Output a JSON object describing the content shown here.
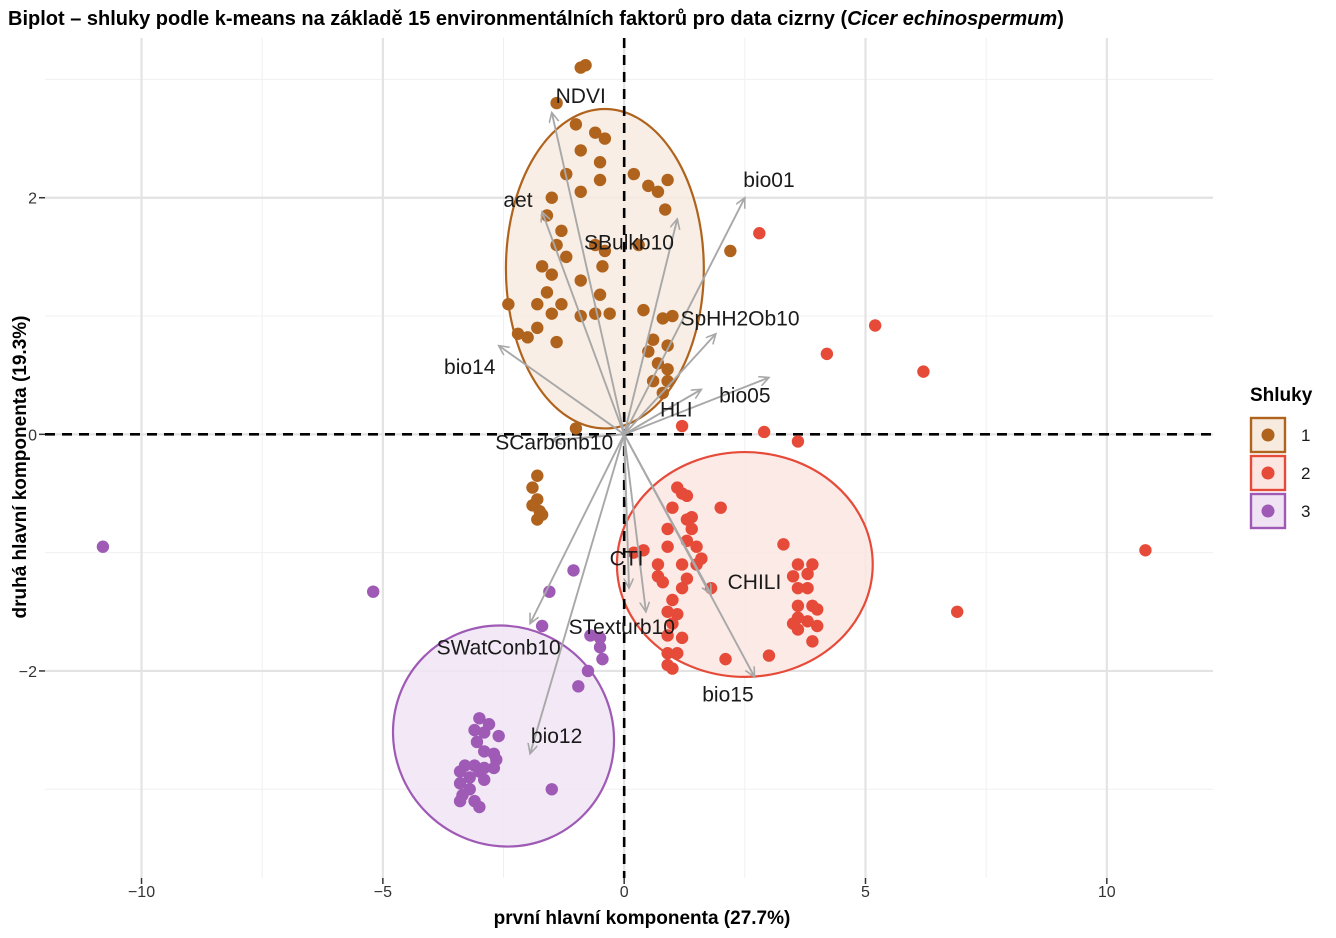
{
  "chart_data": {
    "type": "scatter",
    "subtype": "pca-biplot",
    "title_main": "Biplot – shluky podle k-means na základě 15 environmentálních faktorů pro data cizrny (",
    "title_italic": "Cicer echinospermum",
    "title_end": ")",
    "xlabel": "první hlavní komponenta (27.7%)",
    "ylabel": "druhá hlavní komponenta (19.3%)",
    "xlim": [
      -12.0,
      12.2
    ],
    "ylim": [
      -3.75,
      3.35
    ],
    "xticks": [
      -10,
      -5,
      0,
      5,
      10
    ],
    "xtick_labels": [
      "−10",
      "−5",
      "0",
      "5",
      "10"
    ],
    "yticks": [
      -2,
      0,
      2
    ],
    "ytick_labels": [
      "−2",
      "0",
      "2"
    ],
    "x_minor": [
      -7.5,
      -2.5,
      2.5,
      7.5
    ],
    "y_minor": [
      -3,
      -1,
      1,
      3
    ],
    "grid": true,
    "legend": {
      "title": "Shluky",
      "position": "right",
      "items": [
        {
          "label": "1",
          "color": "#b0631d"
        },
        {
          "label": "2",
          "color": "#e64b3a"
        },
        {
          "label": "3",
          "color": "#9e5ab5"
        }
      ]
    },
    "arrow_color": "#a8a8a8",
    "loadings": [
      {
        "name": "NDVI",
        "x": -1.5,
        "y": 2.72,
        "lx": -0.9,
        "ly": 2.86
      },
      {
        "name": "aet",
        "x": -1.7,
        "y": 1.88,
        "lx": -2.2,
        "ly": 1.98
      },
      {
        "name": "SBulkb10",
        "x": 1.1,
        "y": 1.82,
        "lx": 0.1,
        "ly": 1.62
      },
      {
        "name": "bio01",
        "x": 2.5,
        "y": 2.0,
        "lx": 3.0,
        "ly": 2.15
      },
      {
        "name": "SpHH2Ob10",
        "x": 1.9,
        "y": 0.85,
        "lx": 2.4,
        "ly": 0.98
      },
      {
        "name": "bio14",
        "x": -2.6,
        "y": 0.75,
        "lx": -3.2,
        "ly": 0.57
      },
      {
        "name": "bio05",
        "x": 3.0,
        "y": 0.48,
        "lx": 2.5,
        "ly": 0.33
      },
      {
        "name": "HLI",
        "x": 1.6,
        "y": 0.38,
        "lx": 1.08,
        "ly": 0.21
      },
      {
        "name": "SCarbonb10",
        "x": -1.5,
        "y": -0.05,
        "lx": -1.45,
        "ly": -0.07
      },
      {
        "name": "CTI",
        "x": 0.45,
        "y": -1.5,
        "lx": 0.05,
        "ly": -1.05
      },
      {
        "name": "CHILI",
        "x": 1.8,
        "y": -1.35,
        "lx": 2.7,
        "ly": -1.25
      },
      {
        "name": "STexturb10",
        "x": 0.1,
        "y": -1.3,
        "lx": -0.05,
        "ly": -1.63
      },
      {
        "name": "SWatConb10",
        "x": -1.95,
        "y": -1.6,
        "lx": -2.6,
        "ly": -1.8
      },
      {
        "name": "bio15",
        "x": 2.7,
        "y": -2.05,
        "lx": 2.15,
        "ly": -2.2
      },
      {
        "name": "bio12",
        "x": -1.95,
        "y": -2.7,
        "lx": -1.4,
        "ly": -2.55
      }
    ],
    "clusters": [
      {
        "name": "1",
        "color": "#b0631d",
        "fill": "#f7ebe0",
        "ellipse": {
          "cx": -0.4,
          "cy": 1.4,
          "rx": 2.05,
          "ry": 1.35
        },
        "points": [
          [
            -0.9,
            3.1
          ],
          [
            -0.8,
            3.12
          ],
          [
            -1.4,
            2.8
          ],
          [
            -1.0,
            2.62
          ],
          [
            -0.6,
            2.55
          ],
          [
            -0.4,
            2.5
          ],
          [
            -0.9,
            2.4
          ],
          [
            -0.5,
            2.3
          ],
          [
            -1.2,
            2.2
          ],
          [
            -0.5,
            2.15
          ],
          [
            0.2,
            2.2
          ],
          [
            0.5,
            2.1
          ],
          [
            0.9,
            2.15
          ],
          [
            -1.5,
            2.0
          ],
          [
            -0.9,
            2.05
          ],
          [
            0.7,
            2.05
          ],
          [
            0.85,
            1.9
          ],
          [
            -1.6,
            1.85
          ],
          [
            -1.3,
            1.72
          ],
          [
            -1.4,
            1.6
          ],
          [
            -0.6,
            1.6
          ],
          [
            -0.4,
            1.55
          ],
          [
            0.3,
            1.6
          ],
          [
            -1.2,
            1.5
          ],
          [
            -1.7,
            1.42
          ],
          [
            -0.45,
            1.42
          ],
          [
            -1.5,
            1.35
          ],
          [
            -0.9,
            1.3
          ],
          [
            -1.6,
            1.2
          ],
          [
            -0.5,
            1.18
          ],
          [
            -1.3,
            1.1
          ],
          [
            -1.8,
            1.1
          ],
          [
            -2.4,
            1.1
          ],
          [
            -1.5,
            1.02
          ],
          [
            -0.9,
            1.0
          ],
          [
            -0.6,
            1.02
          ],
          [
            -0.3,
            1.02
          ],
          [
            0.4,
            1.05
          ],
          [
            1.0,
            1.0
          ],
          [
            0.8,
            0.98
          ],
          [
            -1.8,
            0.9
          ],
          [
            -2.2,
            0.85
          ],
          [
            -2.0,
            0.82
          ],
          [
            0.6,
            0.8
          ],
          [
            0.9,
            0.75
          ],
          [
            -1.4,
            0.78
          ],
          [
            0.5,
            0.7
          ],
          [
            0.7,
            0.6
          ],
          [
            0.9,
            0.55
          ],
          [
            0.6,
            0.45
          ],
          [
            0.9,
            0.45
          ],
          [
            0.8,
            0.35
          ],
          [
            2.2,
            1.55
          ],
          [
            -1.0,
            0.05
          ],
          [
            -1.8,
            -0.35
          ],
          [
            -1.9,
            -0.45
          ],
          [
            -1.8,
            -0.55
          ],
          [
            -1.9,
            -0.6
          ],
          [
            -1.75,
            -0.65
          ],
          [
            -1.8,
            -0.72
          ],
          [
            -1.7,
            -0.68
          ]
        ]
      },
      {
        "name": "2",
        "color": "#e64b3a",
        "fill": "#fce6e2",
        "ellipse": {
          "cx": 2.5,
          "cy": -1.1,
          "rx": 2.65,
          "ry": 0.95
        },
        "points": [
          [
            2.8,
            1.7
          ],
          [
            5.2,
            0.92
          ],
          [
            4.2,
            0.68
          ],
          [
            6.2,
            0.53
          ],
          [
            1.2,
            0.07
          ],
          [
            2.9,
            0.02
          ],
          [
            3.6,
            -0.06
          ],
          [
            1.1,
            -0.45
          ],
          [
            1.2,
            -0.5
          ],
          [
            1.3,
            -0.52
          ],
          [
            2.0,
            -0.62
          ],
          [
            1.0,
            -0.62
          ],
          [
            1.4,
            -0.7
          ],
          [
            1.3,
            -0.72
          ],
          [
            1.4,
            -0.8
          ],
          [
            0.9,
            -0.8
          ],
          [
            1.3,
            -0.9
          ],
          [
            0.9,
            -0.95
          ],
          [
            1.5,
            -0.95
          ],
          [
            3.3,
            -0.93
          ],
          [
            0.4,
            -0.98
          ],
          [
            0.2,
            -1.0
          ],
          [
            1.6,
            -1.05
          ],
          [
            1.5,
            -1.1
          ],
          [
            0.7,
            -1.1
          ],
          [
            1.2,
            -1.1
          ],
          [
            3.6,
            -1.1
          ],
          [
            3.9,
            -1.1
          ],
          [
            0.7,
            -1.2
          ],
          [
            0.8,
            -1.25
          ],
          [
            3.8,
            -1.18
          ],
          [
            3.5,
            -1.2
          ],
          [
            1.3,
            -1.22
          ],
          [
            1.2,
            -1.3
          ],
          [
            1.8,
            -1.3
          ],
          [
            3.6,
            -1.3
          ],
          [
            3.8,
            -1.3
          ],
          [
            1.0,
            -1.4
          ],
          [
            3.6,
            -1.45
          ],
          [
            3.9,
            -1.45
          ],
          [
            4.0,
            -1.48
          ],
          [
            0.9,
            -1.5
          ],
          [
            1.1,
            -1.52
          ],
          [
            3.6,
            -1.55
          ],
          [
            3.5,
            -1.6
          ],
          [
            3.8,
            -1.58
          ],
          [
            1.0,
            -1.6
          ],
          [
            3.6,
            -1.65
          ],
          [
            4.0,
            -1.62
          ],
          [
            0.9,
            -1.7
          ],
          [
            3.9,
            -1.75
          ],
          [
            1.2,
            -1.72
          ],
          [
            0.9,
            -1.85
          ],
          [
            1.1,
            -1.85
          ],
          [
            0.9,
            -1.95
          ],
          [
            1.0,
            -1.98
          ],
          [
            3.0,
            -1.87
          ],
          [
            2.1,
            -1.9
          ],
          [
            6.9,
            -1.5
          ],
          [
            10.8,
            -0.98
          ]
        ]
      },
      {
        "name": "3",
        "color": "#9e5ab5",
        "fill": "#f0e4f4",
        "ellipse": {
          "cx": -2.5,
          "cy": -2.55,
          "rx": 2.25,
          "ry": 0.95,
          "angle_deg": -45
        },
        "points": [
          [
            -10.8,
            -0.95
          ],
          [
            -5.2,
            -1.33
          ],
          [
            -1.05,
            -1.15
          ],
          [
            -1.55,
            -1.33
          ],
          [
            -1.7,
            -1.62
          ],
          [
            -0.7,
            -1.7
          ],
          [
            -0.5,
            -1.72
          ],
          [
            -0.5,
            -1.8
          ],
          [
            -0.45,
            -1.9
          ],
          [
            -0.75,
            -2.0
          ],
          [
            -0.95,
            -2.13
          ],
          [
            -3.0,
            -2.4
          ],
          [
            -2.8,
            -2.45
          ],
          [
            -3.1,
            -2.5
          ],
          [
            -2.9,
            -2.52
          ],
          [
            -2.6,
            -2.55
          ],
          [
            -3.05,
            -2.6
          ],
          [
            -2.9,
            -2.68
          ],
          [
            -2.7,
            -2.7
          ],
          [
            -2.65,
            -2.75
          ],
          [
            -3.3,
            -2.8
          ],
          [
            -3.1,
            -2.8
          ],
          [
            -2.9,
            -2.82
          ],
          [
            -2.7,
            -2.82
          ],
          [
            -3.4,
            -2.85
          ],
          [
            -3.0,
            -2.85
          ],
          [
            -3.2,
            -2.9
          ],
          [
            -2.9,
            -2.92
          ],
          [
            -3.4,
            -2.95
          ],
          [
            -3.2,
            -3.0
          ],
          [
            -3.35,
            -3.05
          ],
          [
            -3.4,
            -3.1
          ],
          [
            -3.1,
            -3.1
          ],
          [
            -3.0,
            -3.15
          ],
          [
            -1.5,
            -3.0
          ]
        ]
      }
    ]
  }
}
